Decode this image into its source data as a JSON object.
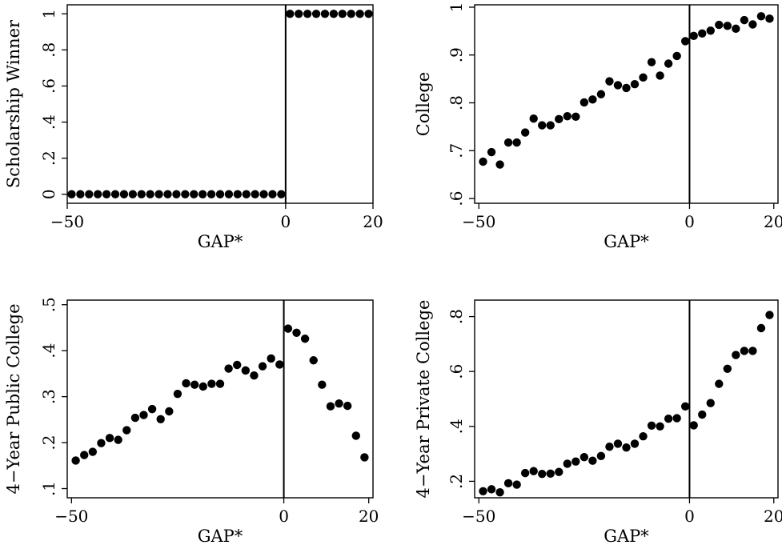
{
  "chart_data": [
    {
      "type": "scatter",
      "panel": "top-left",
      "xlabel": "GAP*",
      "ylabel": "Scholarship Winner",
      "xlim": [
        -50,
        20
      ],
      "ylim": [
        -0.05,
        1.05
      ],
      "xticks": [
        -50,
        0,
        20
      ],
      "xtick_labels": [
        "−50",
        "0",
        "20"
      ],
      "yticks": [
        0,
        0.2,
        0.4,
        0.6,
        0.8,
        1
      ],
      "ytick_labels": [
        "0",
        ".2",
        ".4",
        ".6",
        ".8",
        "1"
      ],
      "cutoff_line_x": 0,
      "grid": false,
      "x": [
        -49,
        -47,
        -45,
        -43,
        -41,
        -39,
        -37,
        -35,
        -33,
        -31,
        -29,
        -27,
        -25,
        -23,
        -21,
        -19,
        -17,
        -15,
        -13,
        -11,
        -9,
        -7,
        -5,
        -3,
        -1,
        1,
        3,
        5,
        7,
        9,
        11,
        13,
        15,
        17,
        19
      ],
      "y": [
        0,
        0,
        0,
        0,
        0,
        0,
        0,
        0,
        0,
        0,
        0,
        0,
        0,
        0,
        0,
        0,
        0,
        0,
        0,
        0,
        0,
        0,
        0,
        0,
        0,
        1,
        1,
        1,
        1,
        1,
        1,
        1,
        1,
        1,
        1
      ]
    },
    {
      "type": "scatter",
      "panel": "top-right",
      "xlabel": "GAP*",
      "ylabel": "College",
      "xlim": [
        -51,
        21
      ],
      "ylim": [
        0.59,
        1.005
      ],
      "xticks": [
        -50,
        0,
        20
      ],
      "xtick_labels": [
        "−50",
        "0",
        "20"
      ],
      "yticks": [
        0.6,
        0.7,
        0.8,
        0.9,
        1
      ],
      "ytick_labels": [
        ".6",
        ".7",
        ".8",
        ".9",
        "1"
      ],
      "cutoff_line_x": 0,
      "grid": false,
      "x": [
        -49,
        -47,
        -45,
        -43,
        -41,
        -39,
        -37,
        -35,
        -33,
        -31,
        -29,
        -27,
        -25,
        -23,
        -21,
        -19,
        -17,
        -15,
        -13,
        -11,
        -9,
        -7,
        -5,
        -3,
        -1,
        1,
        3,
        5,
        7,
        9,
        11,
        13,
        15,
        17,
        19
      ],
      "y": [
        0.677,
        0.697,
        0.671,
        0.717,
        0.717,
        0.738,
        0.767,
        0.753,
        0.753,
        0.766,
        0.772,
        0.771,
        0.801,
        0.807,
        0.818,
        0.845,
        0.837,
        0.831,
        0.839,
        0.853,
        0.885,
        0.857,
        0.882,
        0.898,
        0.929,
        0.94,
        0.945,
        0.951,
        0.963,
        0.961,
        0.955,
        0.973,
        0.964,
        0.981,
        0.976
      ]
    },
    {
      "type": "scatter",
      "panel": "bottom-left",
      "xlabel": "GAP*",
      "ylabel": "4−Year Public College",
      "xlim": [
        -51,
        21
      ],
      "ylim": [
        0.08,
        0.51
      ],
      "xticks": [
        -50,
        0,
        20
      ],
      "xtick_labels": [
        "−50",
        "0",
        "20"
      ],
      "yticks": [
        0.1,
        0.2,
        0.3,
        0.4,
        0.5
      ],
      "ytick_labels": [
        ".1",
        ".2",
        ".3",
        ".4",
        ".5"
      ],
      "cutoff_line_x": 0,
      "grid": false,
      "x": [
        -49,
        -47,
        -45,
        -43,
        -41,
        -39,
        -37,
        -35,
        -33,
        -31,
        -29,
        -27,
        -25,
        -23,
        -21,
        -19,
        -17,
        -15,
        -13,
        -11,
        -9,
        -7,
        -5,
        -3,
        -1,
        1,
        3,
        5,
        7,
        9,
        11,
        13,
        15,
        17,
        19
      ],
      "y": [
        0.161,
        0.173,
        0.18,
        0.199,
        0.21,
        0.206,
        0.227,
        0.254,
        0.26,
        0.273,
        0.251,
        0.268,
        0.306,
        0.329,
        0.326,
        0.322,
        0.328,
        0.328,
        0.361,
        0.369,
        0.357,
        0.346,
        0.366,
        0.383,
        0.37,
        0.448,
        0.439,
        0.426,
        0.379,
        0.326,
        0.279,
        0.285,
        0.28,
        0.215,
        0.168
      ]
    },
    {
      "type": "scatter",
      "panel": "bottom-right",
      "xlabel": "GAP*",
      "ylabel": "4−Year Private College",
      "xlim": [
        -51,
        21
      ],
      "ylim": [
        0.14,
        0.86
      ],
      "xticks": [
        -50,
        0,
        20
      ],
      "xtick_labels": [
        "−50",
        "0",
        "20"
      ],
      "yticks": [
        0.2,
        0.4,
        0.6,
        0.8
      ],
      "ytick_labels": [
        ".2",
        ".4",
        ".6",
        ".8"
      ],
      "cutoff_line_x": 0,
      "grid": false,
      "x": [
        -49,
        -47,
        -45,
        -43,
        -41,
        -39,
        -37,
        -35,
        -33,
        -31,
        -29,
        -27,
        -25,
        -23,
        -21,
        -19,
        -17,
        -15,
        -13,
        -11,
        -9,
        -7,
        -5,
        -3,
        -1,
        1,
        3,
        5,
        7,
        9,
        11,
        13,
        15,
        17,
        19
      ],
      "y": [
        0.164,
        0.171,
        0.16,
        0.193,
        0.188,
        0.23,
        0.237,
        0.227,
        0.228,
        0.234,
        0.264,
        0.272,
        0.288,
        0.275,
        0.292,
        0.326,
        0.337,
        0.323,
        0.337,
        0.364,
        0.403,
        0.4,
        0.428,
        0.43,
        0.473,
        0.404,
        0.443,
        0.485,
        0.555,
        0.61,
        0.66,
        0.675,
        0.675,
        0.758,
        0.806
      ]
    }
  ]
}
